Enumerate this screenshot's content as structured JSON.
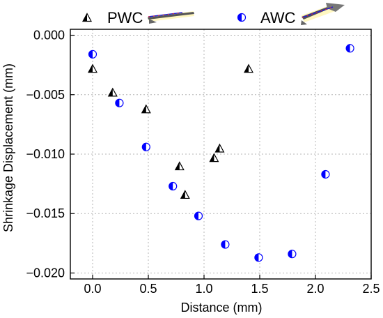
{
  "chart_data": {
    "type": "scatter",
    "xlabel": "Distance (mm)",
    "ylabel": "Shrinkage Displacement (mm)",
    "xlim": [
      -0.2,
      2.5
    ],
    "ylim": [
      -0.0205,
      0.0005
    ],
    "x_ticks": [
      0.0,
      0.5,
      1.0,
      1.5,
      2.0,
      2.5
    ],
    "x_tick_labels": [
      "0.0",
      "0.5",
      "1.0",
      "1.5",
      "2.0",
      "2.5"
    ],
    "y_ticks": [
      0.0,
      -0.005,
      -0.01,
      -0.015,
      -0.02
    ],
    "y_tick_labels": [
      "0.000",
      "−0.005",
      "−0.010",
      "−0.015",
      "−0.020"
    ],
    "grid": true,
    "legend_position": "top",
    "series": [
      {
        "name": "PWC",
        "marker": "half-filled-triangle",
        "color": "#000000",
        "x": [
          0.0,
          0.18,
          0.48,
          0.78,
          0.83,
          1.09,
          1.14,
          1.4
        ],
        "y": [
          -0.0028,
          -0.0048,
          -0.0062,
          -0.011,
          -0.0134,
          -0.0103,
          -0.0095,
          -0.0028
        ]
      },
      {
        "name": "AWC",
        "marker": "half-filled-circle",
        "color": "#0000ff",
        "x": [
          0.0,
          0.24,
          0.48,
          0.72,
          0.95,
          1.19,
          1.49,
          1.79,
          2.09,
          2.31
        ],
        "y": [
          -0.0016,
          -0.0057,
          -0.0094,
          -0.0127,
          -0.0152,
          -0.0176,
          -0.0187,
          -0.0184,
          -0.0117,
          -0.0011
        ]
      }
    ]
  }
}
